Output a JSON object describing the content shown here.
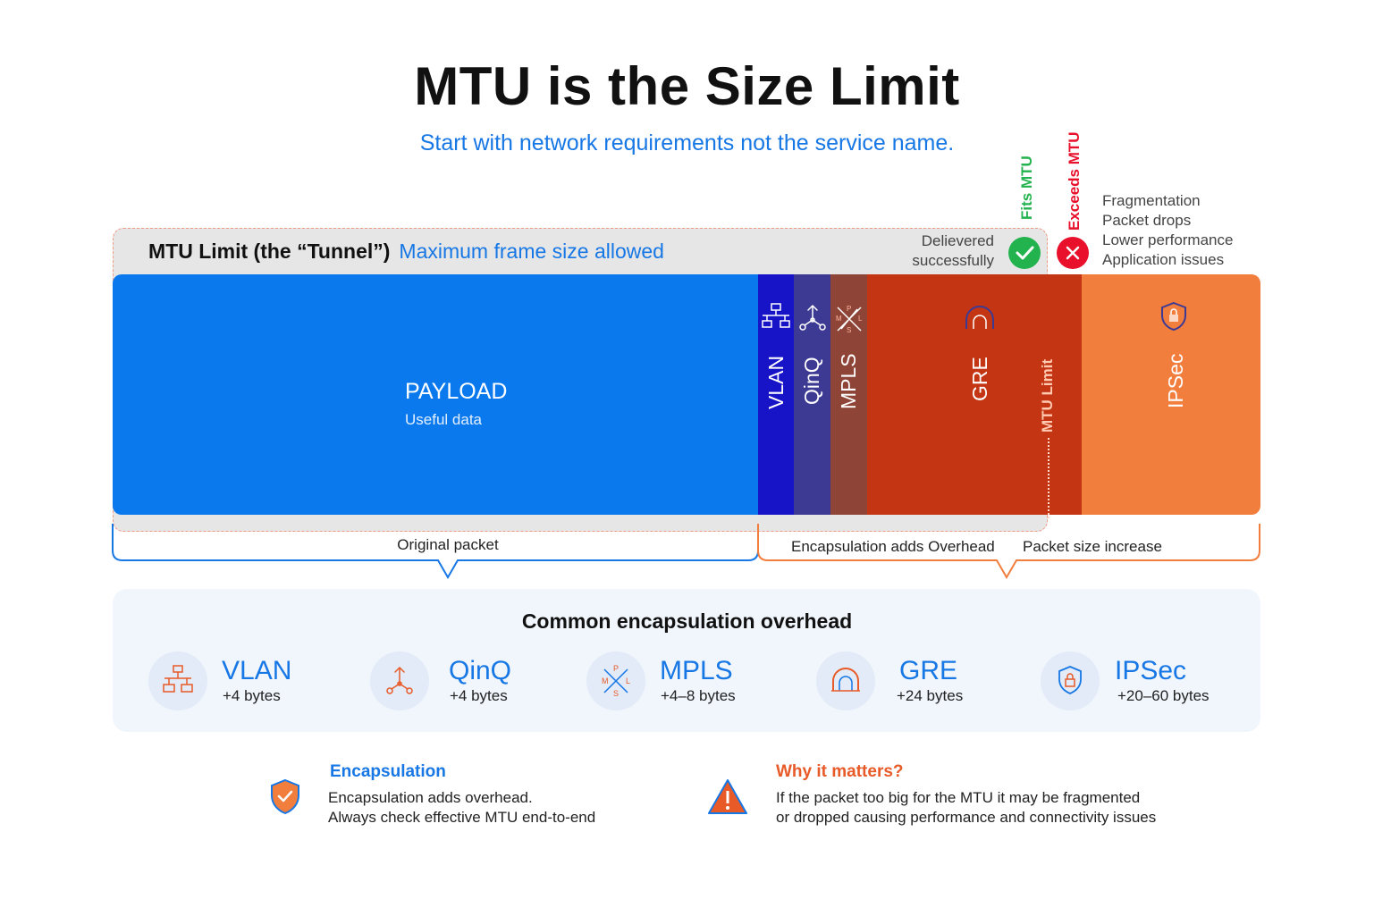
{
  "title": "MTU is the Size Limit",
  "subtitle": "Start with network requirements not the service name.",
  "tunnel": {
    "title": "MTU Limit (the “Tunnel”)",
    "subtitle": "Maximum frame size allowed"
  },
  "status": {
    "delivered_line1": "Delievered",
    "delivered_line2": "successfully",
    "fits_label": "Fits MTU",
    "exceeds_label": "Exceeds MTU",
    "consequences": [
      "Fragmentation",
      "Packet drops",
      "Lower performance",
      "Application issues"
    ]
  },
  "packet": {
    "payload_label": "PAYLOAD",
    "payload_sub": "Useful data",
    "segments": [
      "VLAN",
      "QinQ",
      "MPLS",
      "GRE",
      "IPSec"
    ],
    "mtu_limit_label": "MTU Limit"
  },
  "braces": {
    "original": "Original packet",
    "encapsulation": "Encapsulation adds Overhead",
    "increase": "Packet size increase"
  },
  "overhead": {
    "title": "Common encapsulation overhead",
    "items": [
      {
        "name": "VLAN",
        "bytes": "+4 bytes"
      },
      {
        "name": "QinQ",
        "bytes": "+4 bytes"
      },
      {
        "name": "MPLS",
        "bytes": "+4–8 bytes"
      },
      {
        "name": "GRE",
        "bytes": "+24 bytes"
      },
      {
        "name": "IPSec",
        "bytes": "+20–60 bytes"
      }
    ]
  },
  "notes": {
    "encapsulation": {
      "title": "Encapsulation",
      "line1": "Encapsulation adds overhead.",
      "line2": "Always check effective MTU end-to-end"
    },
    "why": {
      "title": "Why it matters?",
      "line1": "If the packet too big for the MTU it may be fragmented",
      "line2": "or dropped causing performance and connectivity issues"
    }
  },
  "colors": {
    "accent_blue": "#1677e5",
    "payload": "#0a79ee",
    "vlan": "#1714c7",
    "qinq": "#3d3a94",
    "mpls": "#8e4538",
    "gre": "#c43613",
    "ipsec": "#f27e3e",
    "fits": "#22b34e",
    "exceeds": "#e8102a",
    "warning": "#e85a28"
  },
  "icons": {
    "vlan": "network-tree-icon",
    "qinq": "fork-icon",
    "mpls": "mpls-cross-icon",
    "gre": "tunnel-icon",
    "ipsec": "shield-lock-icon",
    "fits": "check-icon",
    "exceeds": "close-icon",
    "encapsulation": "shield-check-icon",
    "why": "warning-icon"
  }
}
